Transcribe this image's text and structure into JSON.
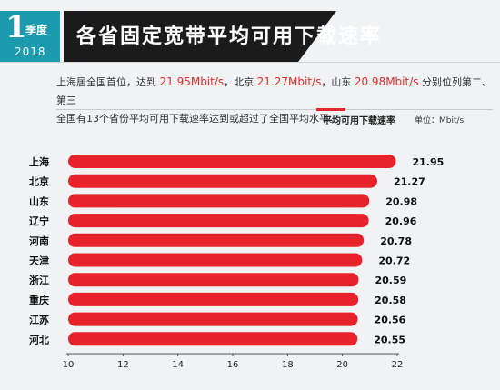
{
  "header": {
    "quarter_number": "1",
    "quarter_unit": "季度",
    "year": "2018",
    "title": "各省固定宽带平均可用下载速率"
  },
  "summary": {
    "line1_part1": "上海居全国首位，达到",
    "line1_value1": "21.95Mbit/s",
    "line1_part2": "，北京",
    "line1_value2": "21.27Mbit/s",
    "line1_part3": "，山东",
    "line1_value3": "20.98Mbit/s",
    "line1_part4": "分别位列第二、第三",
    "line2": "全国有13个省份平均可用下载速率达到或超过了全国平均水平。"
  },
  "colors": {
    "accent": "#1d9bae",
    "bar": "#e8222a",
    "highlight": "#e42a2a"
  },
  "chart_data": {
    "type": "bar",
    "orientation": "horizontal",
    "ylabel": "平均可用下载速率",
    "unit": "单位：Mbit/s",
    "categories": [
      "上海",
      "北京",
      "山东",
      "辽宁",
      "河南",
      "天津",
      "浙江",
      "重庆",
      "江苏",
      "河北"
    ],
    "values": [
      21.95,
      21.27,
      20.98,
      20.96,
      20.78,
      20.72,
      20.59,
      20.58,
      20.56,
      20.55
    ],
    "value_labels": [
      "21.95",
      "21.27",
      "20.98",
      "20.96",
      "20.78",
      "20.72",
      "20.59",
      "20.58",
      "20.56",
      "20.55"
    ],
    "xlim": [
      10,
      22
    ],
    "xticks": [
      10,
      12,
      14,
      16,
      18,
      20,
      22
    ],
    "xtick_labels": [
      "10",
      "12",
      "14",
      "16",
      "18",
      "20",
      "22"
    ],
    "grid": false,
    "legend": false
  }
}
